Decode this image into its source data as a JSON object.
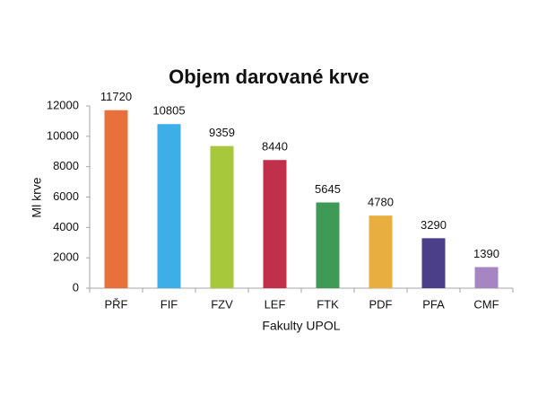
{
  "chart_data": {
    "type": "bar",
    "title": "Objem darované krve",
    "y_label": "Ml krve",
    "x_label": "Fakulty UPOL",
    "categories": [
      "PŘF",
      "FIF",
      "FZV",
      "LEF",
      "FTK",
      "PDF",
      "PFA",
      "CMF"
    ],
    "values": [
      11720,
      10805,
      9359,
      8440,
      5645,
      4780,
      3290,
      1390
    ],
    "colors": [
      "#e8703a",
      "#3daee8",
      "#a8c83c",
      "#c0304a",
      "#3e9a55",
      "#e8ae3f",
      "#4b3f8a",
      "#a686c2"
    ],
    "ylim": [
      0,
      12000
    ],
    "yticks": [
      0,
      2000,
      4000,
      6000,
      8000,
      10000,
      12000
    ],
    "grid": false
  }
}
